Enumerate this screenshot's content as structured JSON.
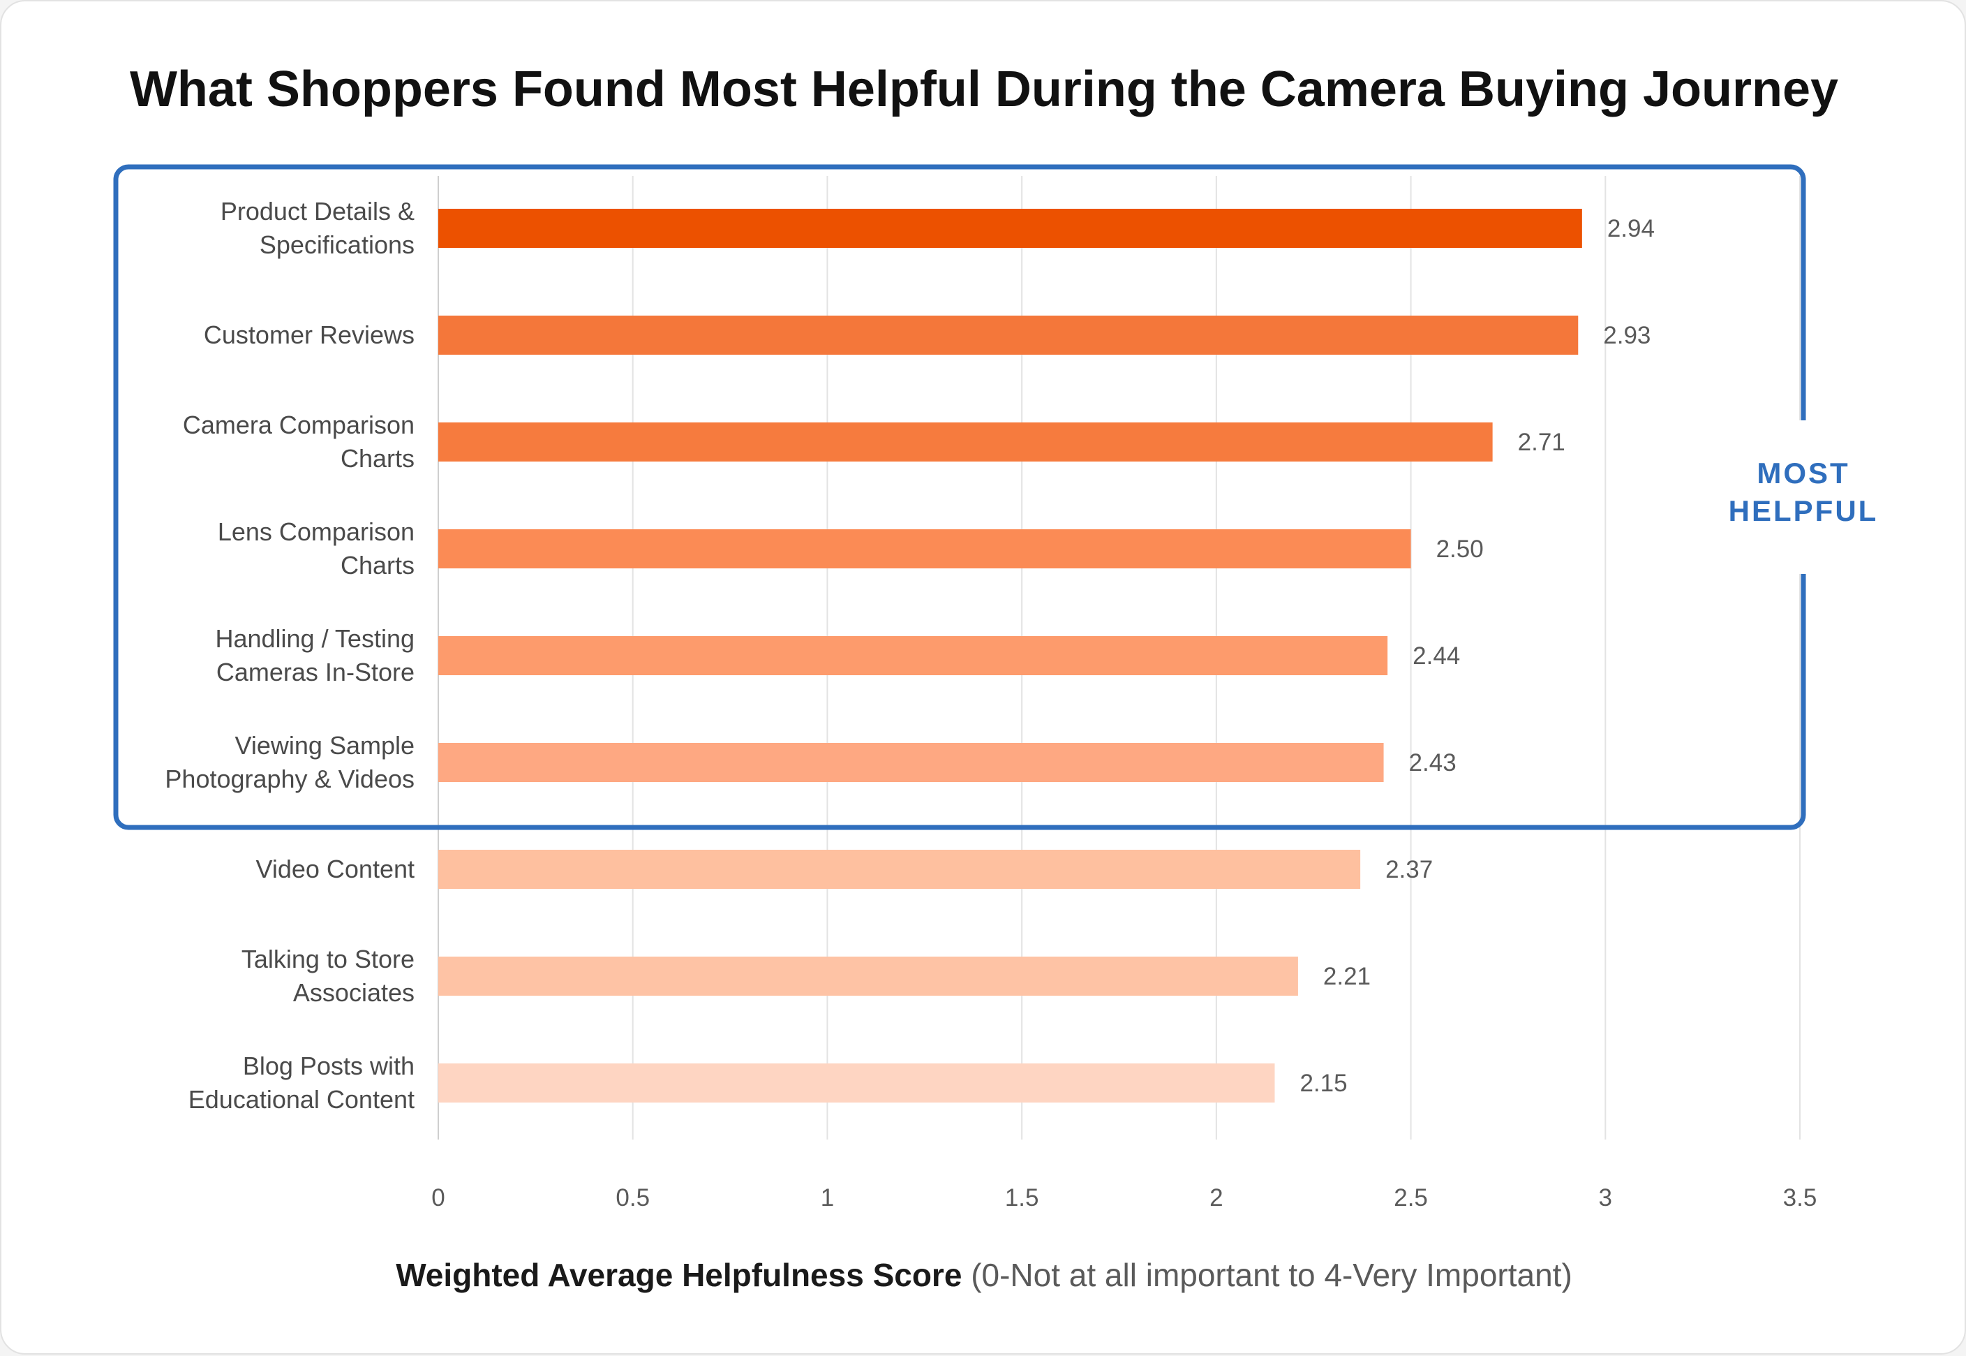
{
  "chart_data": {
    "type": "bar",
    "orientation": "horizontal",
    "title": "What Shoppers Found Most Helpful During the Camera Buying Journey",
    "categories": [
      [
        "Product Details &",
        "Specifications"
      ],
      [
        "Customer Reviews"
      ],
      [
        "Camera Comparison",
        "Charts"
      ],
      [
        "Lens Comparison",
        "Charts"
      ],
      [
        "Handling / Testing",
        "Cameras In-Store"
      ],
      [
        "Viewing Sample",
        "Photography & Videos"
      ],
      [
        "Video Content"
      ],
      [
        "Talking to Store",
        "Associates"
      ],
      [
        "Blog Posts with",
        "Educational Content"
      ]
    ],
    "values": [
      2.94,
      2.93,
      2.71,
      2.5,
      2.44,
      2.43,
      2.37,
      2.21,
      2.15
    ],
    "value_labels": [
      "2.94",
      "2.93",
      "2.71",
      "2.50",
      "2.44",
      "2.43",
      "2.37",
      "2.21",
      "2.15"
    ],
    "bar_colors": [
      "#ec5100",
      "#f4773a",
      "#f67b3e",
      "#fb8b55",
      "#fd9b6c",
      "#fea882",
      "#fec09f",
      "#fec3a5",
      "#fed5c2"
    ],
    "xlim": [
      0,
      3.5
    ],
    "xticks": [
      0,
      0.5,
      1,
      1.5,
      2,
      2.5,
      3,
      3.5
    ],
    "xtick_labels": [
      "0",
      "0.5",
      "1",
      "1.5",
      "2",
      "2.5",
      "3",
      "3.5"
    ],
    "grid": true,
    "xlabel_bold": "Weighted Average Helpfulness Score",
    "xlabel_rest": " (0-Not at all important to 4-Very Important)",
    "callout": {
      "lines": [
        "MOST",
        "HELPFUL"
      ],
      "covers_categories": 6,
      "color": "#2f6ebd"
    }
  }
}
